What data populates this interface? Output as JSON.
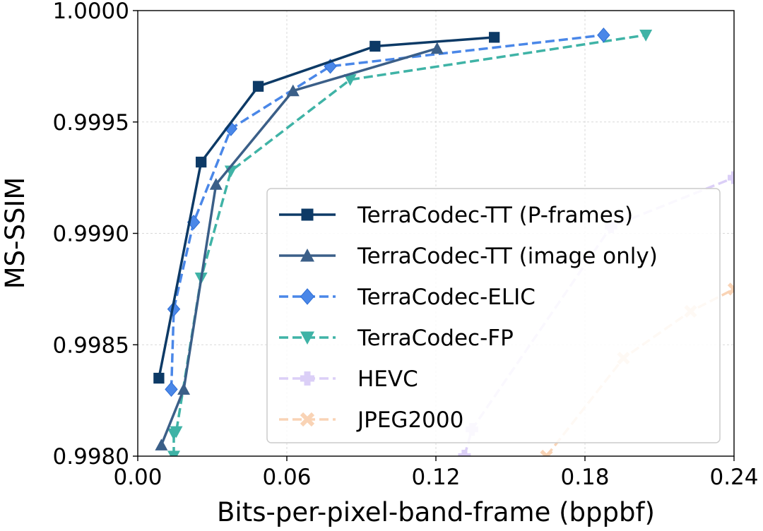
{
  "chart_data": {
    "type": "line",
    "title": "",
    "xlabel": "Bits-per-pixel-band-frame (bppbf)",
    "ylabel": "MS-SSIM",
    "xlim": [
      0.0,
      0.24
    ],
    "ylim": [
      0.998,
      1.0
    ],
    "xticks": [
      0.0,
      0.06,
      0.12,
      0.18,
      0.24
    ],
    "xtick_labels": [
      "0.00",
      "0.06",
      "0.12",
      "0.18",
      "0.24"
    ],
    "yticks": [
      0.998,
      0.9985,
      0.999,
      0.9995,
      1.0
    ],
    "ytick_labels": [
      "0.9980",
      "0.9985",
      "0.9990",
      "0.9995",
      "1.0000"
    ],
    "grid": true,
    "legend_position": "center-right",
    "series": [
      {
        "name": "TerraCodec-TT (P-frames)",
        "color": "#0d3a66",
        "marker": "square",
        "dashed": false,
        "opacity": 1.0,
        "x": [
          0.0085,
          0.0255,
          0.0485,
          0.0955,
          0.1435
        ],
        "y": [
          0.99835,
          0.99932,
          0.99966,
          0.99984,
          0.99988
        ]
      },
      {
        "name": "TerraCodec-TT (image only)",
        "color": "#3b5f88",
        "marker": "triangle-up",
        "dashed": false,
        "opacity": 1.0,
        "x": [
          0.0095,
          0.0185,
          0.0315,
          0.0625,
          0.1205
        ],
        "y": [
          0.99805,
          0.9983,
          0.99922,
          0.99964,
          0.99983
        ]
      },
      {
        "name": "TerraCodec-ELIC",
        "color": "#4a87e8",
        "marker": "diamond",
        "dashed": true,
        "opacity": 1.0,
        "x": [
          0.0135,
          0.0145,
          0.0225,
          0.0375,
          0.0775,
          0.1875
        ],
        "y": [
          0.9983,
          0.99866,
          0.99905,
          0.99947,
          0.99975,
          0.99989
        ]
      },
      {
        "name": "TerraCodec-FP",
        "color": "#3fb3a6",
        "marker": "triangle-down",
        "dashed": true,
        "opacity": 1.0,
        "x": [
          0.0145,
          0.0145,
          0.0155,
          0.0255,
          0.0375,
          0.0855,
          0.2045
        ],
        "y": [
          0.998,
          0.9981,
          0.99811,
          0.9988,
          0.99928,
          0.99969,
          0.99989
        ]
      },
      {
        "name": "HEVC",
        "color": "#b9a0f0",
        "marker": "plus",
        "dashed": true,
        "opacity": 0.5,
        "x": [
          0.1315,
          0.1345,
          0.1905,
          0.24
        ],
        "y": [
          0.998,
          0.99812,
          0.99903,
          0.99925
        ]
      },
      {
        "name": "JPEG2000",
        "color": "#f4a96e",
        "marker": "x",
        "dashed": true,
        "opacity": 0.5,
        "x": [
          0.1645,
          0.1955,
          0.2225,
          0.24
        ],
        "y": [
          0.998,
          0.99844,
          0.99865,
          0.99875
        ]
      }
    ]
  }
}
